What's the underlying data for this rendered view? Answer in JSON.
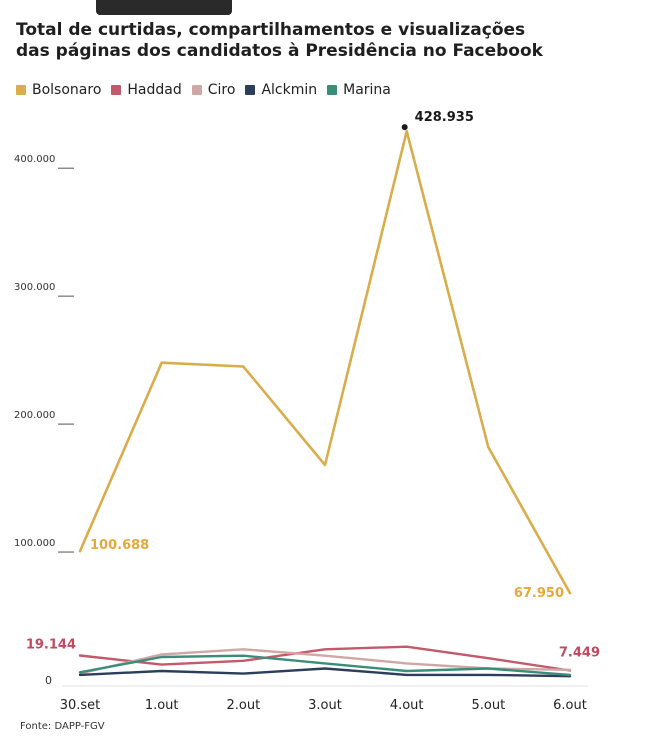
{
  "title_line1": "Total de curtidas, compartilhamentos e visualizações",
  "title_line2": "das páginas dos candidatos à Presidência no Facebook",
  "source": "Fonte: DAPP-FGV",
  "chart_data": {
    "type": "line",
    "x": [
      "30.set",
      "1.out",
      "2.out",
      "3.out",
      "4.out",
      "5.out",
      "6.out"
    ],
    "ylim": [
      0,
      440000
    ],
    "yticks": [
      {
        "value": 0,
        "label": "0"
      },
      {
        "value": 100000,
        "label": "100.000"
      },
      {
        "value": 200000,
        "label": "200.000"
      },
      {
        "value": 300000,
        "label": "300.000"
      },
      {
        "value": 400000,
        "label": "400.000"
      }
    ],
    "series": [
      {
        "name": "Bolsonaro",
        "color": "#d9ad4b",
        "values": [
          100688,
          248000,
          245000,
          168000,
          428935,
          182000,
          67950
        ]
      },
      {
        "name": "Haddad",
        "color": "#c25a6c",
        "values": [
          19144,
          12000,
          15000,
          24000,
          26000,
          17000,
          7449
        ]
      },
      {
        "name": "Ciro",
        "color": "#cfa7a5",
        "values": [
          5000,
          20000,
          24000,
          19000,
          13000,
          9000,
          8000
        ]
      },
      {
        "name": "Alckmin",
        "color": "#2c3e5c",
        "values": [
          4000,
          7000,
          5000,
          9000,
          4000,
          4000,
          3000
        ]
      },
      {
        "name": "Marina",
        "color": "#3b8d7a",
        "values": [
          6000,
          18000,
          19000,
          13000,
          7000,
          9000,
          4000
        ]
      }
    ],
    "annotations": [
      {
        "series": "Bolsonaro",
        "index": 0,
        "label": "100.688",
        "color": "#e5a83a"
      },
      {
        "series": "Bolsonaro",
        "index": 4,
        "label": "428.935",
        "color": "#1a1a1a"
      },
      {
        "series": "Bolsonaro",
        "index": 6,
        "label": "67.950",
        "color": "#e5a83a"
      },
      {
        "series": "Haddad",
        "index": 0,
        "label": "19.144",
        "color": "#c04a5e"
      },
      {
        "series": "Haddad",
        "index": 6,
        "label": "7.449",
        "color": "#c04a5e"
      }
    ]
  }
}
